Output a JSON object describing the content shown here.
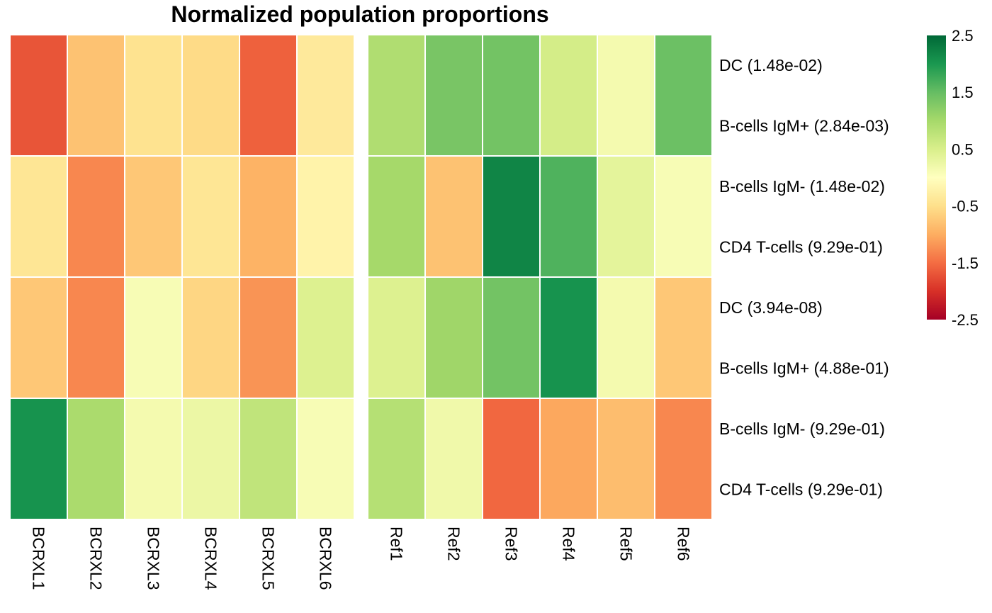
{
  "chart_data": {
    "type": "heatmap",
    "title": "Normalized population proportions",
    "columns": [
      "BCRXL1",
      "BCRXL2",
      "BCRXL3",
      "BCRXL4",
      "BCRXL5",
      "BCRXL6",
      "Ref1",
      "Ref2",
      "Ref3",
      "Ref4",
      "Ref5",
      "Ref6"
    ],
    "column_groups": [
      [
        "BCRXL1",
        "BCRXL2",
        "BCRXL3",
        "BCRXL4",
        "BCRXL5",
        "BCRXL6"
      ],
      [
        "Ref1",
        "Ref2",
        "Ref3",
        "Ref4",
        "Ref5",
        "Ref6"
      ]
    ],
    "rows": [
      "DC (1.48e-02)",
      "B-cells IgM+ (2.84e-03)",
      "B-cells IgM- (1.48e-02)",
      "CD4 T-cells (9.29e-01)",
      "DC (3.94e-08)",
      "B-cells IgM+ (4.88e-01)",
      "B-cells IgM- (9.29e-01)",
      "CD4 T-cells (9.29e-01)"
    ],
    "values": [
      [
        -1.7,
        -0.8,
        -0.45,
        -0.55,
        -1.6,
        -0.35,
        0.9,
        1.35,
        1.4,
        0.55,
        0.15,
        1.45
      ],
      [
        -0.4,
        -1.3,
        -0.75,
        -0.4,
        -0.95,
        -0.2,
        1.0,
        -0.8,
        2.2,
        1.65,
        0.35,
        0.1
      ],
      [
        -0.75,
        -1.3,
        0.1,
        -0.6,
        -1.2,
        0.45,
        0.45,
        1.05,
        1.4,
        2.05,
        0.15,
        -0.75
      ],
      [
        2.05,
        0.95,
        0.15,
        0.25,
        0.75,
        0.1,
        0.85,
        0.2,
        -1.55,
        -1.05,
        -0.85,
        -1.3
      ]
    ],
    "row_cell_note": "each data row spans two stacked row labels",
    "colorbar": {
      "min": -2.5,
      "max": 2.5,
      "ticks": [
        "2.5",
        "1.5",
        "0.5",
        "-0.5",
        "-1.5",
        "-2.5"
      ],
      "colors": [
        "#a50026",
        "#d73027",
        "#f46d43",
        "#fdae61",
        "#fee08b",
        "#ffffbf",
        "#d9ef8b",
        "#a6d96a",
        "#66bd63",
        "#1a9850",
        "#006837"
      ]
    },
    "grid": true,
    "legend": "right"
  }
}
